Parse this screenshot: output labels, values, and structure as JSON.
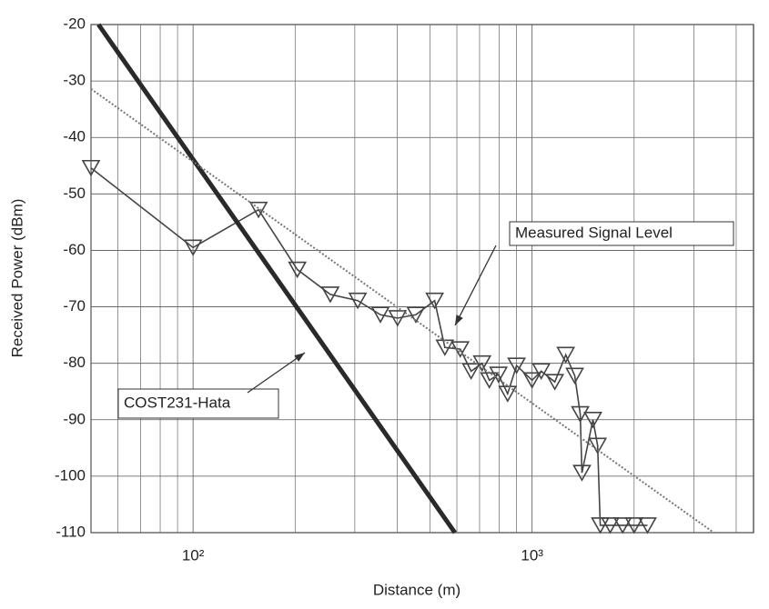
{
  "chart_data": {
    "type": "line",
    "xlabel": "Distance (m)",
    "ylabel": "Received Power (dBm)",
    "xscale": "log",
    "xlim": [
      50,
      4500
    ],
    "ylim": [
      -110,
      -20
    ],
    "xticks": [
      {
        "value": 100,
        "label": "10²"
      },
      {
        "value": 1000,
        "label": "10³"
      }
    ],
    "xminorticks": [
      50,
      60,
      70,
      80,
      90,
      200,
      300,
      400,
      500,
      600,
      700,
      800,
      900,
      2000,
      3000,
      4000
    ],
    "yticks": [
      -110,
      -100,
      -90,
      -80,
      -70,
      -60,
      -50,
      -40,
      -30,
      -20
    ],
    "grid": true,
    "series": [
      {
        "name": "Measured Signal Level",
        "color": "#444444",
        "marker": "triangle-down",
        "line_style": "solid",
        "x": [
          50,
          100,
          156,
          203,
          254,
          306,
          357,
          401,
          454,
          516,
          553,
          614,
          661,
          712,
          748,
          796,
          847,
          900,
          1000,
          1064,
          1167,
          1257,
          1336,
          1387,
          1403,
          1512,
          1561,
          1589,
          1700,
          1850,
          2000,
          2190
        ],
        "values": [
          -45.4,
          -59.5,
          -52.8,
          -63.4,
          -67.8,
          -68.9,
          -71.4,
          -72,
          -71.4,
          -68.9,
          -77.2,
          -77.5,
          -81.4,
          -80,
          -83,
          -82,
          -85.4,
          -80.4,
          -83,
          -81.4,
          -83.3,
          -78.5,
          -82.2,
          -89,
          -99.4,
          -90,
          -94.6,
          -108.7,
          -108.7,
          -108.7,
          -108.7,
          -108.7
        ]
      },
      {
        "name": "COST231-Hata",
        "color": "#2a2a2a",
        "marker": "none",
        "line_style": "thick",
        "x": [
          52.6,
          592
        ],
        "values": [
          -20,
          -110
        ]
      },
      {
        "color": "#777777",
        "marker": "none",
        "line_style": "dotted",
        "x": [
          50,
          3436
        ],
        "values": [
          -31.4,
          -110
        ]
      }
    ]
  }
}
